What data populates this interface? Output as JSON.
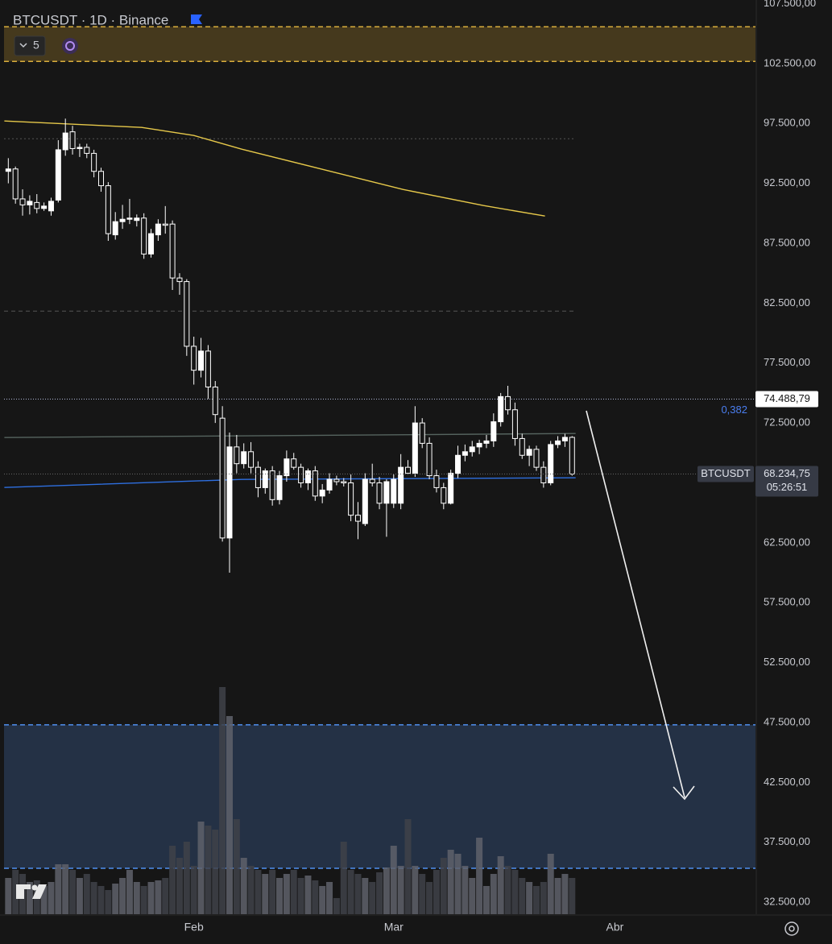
{
  "chart_data": {
    "type": "candlestick",
    "title": "BTCUSDT · 1D · Binance",
    "indicator_count": 5,
    "xlim": [
      -0.6,
      104.7
    ],
    "xticks": [
      {
        "value": 26,
        "label": "Feb"
      },
      {
        "value": 54,
        "label": "Mar"
      },
      {
        "value": 85,
        "label": "Abr"
      }
    ],
    "ylim": [
      31500,
      107800
    ],
    "yticks": [
      {
        "value": 32500,
        "label": "32.500,00"
      },
      {
        "value": 37500,
        "label": "37.500,00"
      },
      {
        "value": 42500,
        "label": "42.500,00"
      },
      {
        "value": 47500,
        "label": "47.500,00"
      },
      {
        "value": 52500,
        "label": "52.500,00"
      },
      {
        "value": 57500,
        "label": "57.500,00"
      },
      {
        "value": 62500,
        "label": "62.500,00"
      },
      {
        "value": 72500,
        "label": "72.500,00"
      },
      {
        "value": 77500,
        "label": "77.500,00"
      },
      {
        "value": 82500,
        "label": "82.500,00"
      },
      {
        "value": 87500,
        "label": "87.500,00"
      },
      {
        "value": 92500,
        "label": "92.500,00"
      },
      {
        "value": 97500,
        "label": "97.500,00"
      },
      {
        "value": 102500,
        "label": "102.500,00"
      },
      {
        "value": 107500,
        "label": "107.500,00"
      }
    ],
    "up_color": "#ffffff",
    "down_color": "#161616",
    "x": [
      0,
      1,
      2,
      3,
      4,
      5,
      6,
      7,
      8,
      9,
      10,
      11,
      12,
      13,
      14,
      15,
      16,
      17,
      18,
      19,
      20,
      21,
      22,
      23,
      24,
      25,
      26,
      27,
      28,
      29,
      30,
      31,
      32,
      33,
      34,
      35,
      36,
      37,
      38,
      39,
      40,
      41,
      42,
      43,
      44,
      45,
      46,
      47,
      48,
      49,
      50,
      51,
      52,
      53,
      54,
      55,
      56,
      57,
      58,
      59,
      60,
      61,
      62,
      63,
      64,
      65,
      66,
      67,
      68,
      69,
      70,
      71,
      72,
      73,
      74,
      75,
      76,
      77,
      78,
      79
    ],
    "open": [
      93500,
      93700,
      91200,
      90700,
      90900,
      90400,
      90200,
      91100,
      95300,
      96800,
      95400,
      95500,
      95000,
      93500,
      92300,
      88200,
      89300,
      89500,
      89400,
      89600,
      86600,
      88200,
      89100,
      89100,
      84600,
      84300,
      78900,
      76900,
      78500,
      75500,
      72900,
      62900,
      70500,
      69100,
      70100,
      68800,
      67100,
      68500,
      66100,
      68100,
      69500,
      68800,
      67500,
      68500,
      66400,
      66900,
      67800,
      67600,
      67500,
      64800,
      64100,
      67800,
      67500,
      65800,
      65800,
      65800,
      68800,
      68300,
      72500,
      70800,
      68100,
      67100,
      65800,
      68300,
      69800,
      70100,
      70500,
      70800,
      71000,
      72600,
      74700,
      73600,
      71200,
      69800,
      70300,
      68800,
      67500,
      70700,
      71000,
      71300
    ],
    "high": [
      94600,
      93900,
      92000,
      91500,
      91600,
      90900,
      91300,
      96100,
      97900,
      97300,
      95800,
      95800,
      95300,
      93800,
      92600,
      90100,
      90700,
      91200,
      89900,
      90000,
      88700,
      89500,
      90600,
      89400,
      85000,
      84500,
      79700,
      79600,
      79000,
      76000,
      73900,
      71700,
      71500,
      70800,
      70900,
      69300,
      68700,
      68900,
      68500,
      70200,
      70000,
      69100,
      68700,
      68900,
      67400,
      68300,
      68100,
      67900,
      68200,
      65900,
      68300,
      69100,
      68000,
      67800,
      68200,
      69900,
      69400,
      73900,
      72900,
      71300,
      68600,
      67500,
      68600,
      70600,
      70700,
      71000,
      71100,
      71500,
      73300,
      75000,
      75600,
      74200,
      71600,
      70600,
      70600,
      69300,
      71000,
      71400,
      71600,
      71400
    ],
    "low": [
      92500,
      90800,
      89800,
      89900,
      90000,
      90200,
      89800,
      90900,
      94800,
      94900,
      94700,
      94600,
      93000,
      91800,
      87700,
      87800,
      88700,
      89100,
      88900,
      86200,
      86300,
      87700,
      88300,
      83600,
      83200,
      78100,
      75700,
      76300,
      74500,
      72500,
      62600,
      60000,
      68300,
      68700,
      68300,
      66300,
      66600,
      65600,
      65700,
      67600,
      68600,
      67100,
      66900,
      66000,
      65800,
      66600,
      67300,
      67200,
      64300,
      62800,
      63900,
      67200,
      65300,
      63000,
      65400,
      65300,
      68200,
      68000,
      70400,
      67800,
      66700,
      65300,
      65700,
      67900,
      69300,
      69700,
      69900,
      70400,
      70500,
      72200,
      73200,
      70600,
      69500,
      68900,
      68500,
      67100,
      67300,
      70400,
      70500,
      68100
    ],
    "close": [
      93700,
      91200,
      90700,
      91000,
      90400,
      90600,
      91000,
      95300,
      96700,
      95400,
      95500,
      95000,
      93500,
      92300,
      88300,
      89300,
      89500,
      89600,
      89600,
      86600,
      88300,
      89100,
      89000,
      84600,
      84300,
      78900,
      76900,
      78500,
      75500,
      73200,
      62900,
      70500,
      69100,
      70100,
      68800,
      67100,
      68500,
      66100,
      68100,
      69500,
      68800,
      67500,
      68500,
      66400,
      66900,
      67800,
      67600,
      67500,
      64800,
      64300,
      67800,
      67500,
      65800,
      67600,
      67800,
      68800,
      68300,
      72500,
      70800,
      68100,
      67100,
      65800,
      68300,
      69800,
      70100,
      70500,
      70800,
      71000,
      72600,
      74700,
      73600,
      71200,
      69800,
      70300,
      68800,
      67500,
      70700,
      71000,
      71300,
      68234.75
    ],
    "volume": [
      45,
      55,
      50,
      40,
      42,
      35,
      40,
      62,
      62,
      55,
      45,
      50,
      40,
      35,
      30,
      38,
      45,
      55,
      40,
      35,
      40,
      42,
      45,
      85,
      70,
      90,
      60,
      115,
      110,
      105,
      282,
      246,
      118,
      70,
      60,
      55,
      50,
      55,
      45,
      50,
      55,
      45,
      48,
      42,
      35,
      40,
      20,
      90,
      55,
      50,
      45,
      40,
      52,
      58,
      85,
      60,
      118,
      60,
      50,
      40,
      55,
      70,
      80,
      75,
      60,
      45,
      95,
      35,
      50,
      72,
      60,
      55,
      45,
      40,
      35,
      40,
      75,
      45,
      50,
      45
    ],
    "overlays": [
      {
        "color": "#e6c84a",
        "x": [
          -0.56,
          18.7,
          26,
          32.7,
          44,
          55.3,
          66.6,
          75.2
        ],
        "values": [
          97700,
          97164,
          96492,
          95349,
          93668,
          91988,
          90643,
          89769
        ]
      },
      {
        "color": "#56645f",
        "x": [
          -0.56,
          79.5
        ],
        "values": [
          71284,
          71620
        ]
      },
      {
        "color": "#2e6fe0",
        "x": [
          -0.56,
          32.7,
          79.5
        ],
        "values": [
          67117,
          67789,
          67923
        ]
      }
    ],
    "levels": [
      {
        "value": 96223,
        "style": "dotted"
      },
      {
        "value": 81838,
        "style": "dashed"
      }
    ],
    "zones": [
      {
        "from": 102676,
        "to": 105566,
        "fill": "#4a3d1e",
        "border": "#d9ad3c"
      },
      {
        "from": 35334,
        "to": 47305,
        "fill": "#26344a",
        "border": "#4f8ff0"
      }
    ],
    "marked_level": {
      "value": 74488.79,
      "label": "74.488,79"
    },
    "fib_label": "0,382",
    "symbol_label": "BTCUSDT",
    "last_price": {
      "value": 68234.75,
      "label": "68.234,75"
    },
    "countdown": "05:26:51"
  }
}
